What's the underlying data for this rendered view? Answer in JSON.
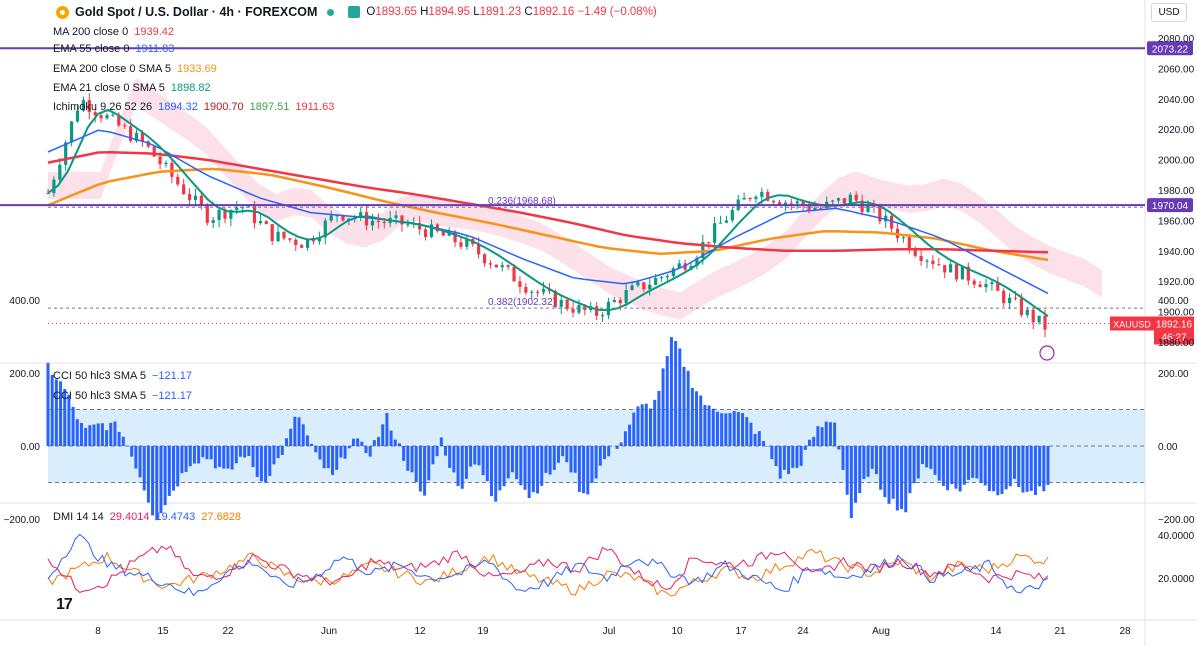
{
  "header": {
    "symbol_title": "Gold Spot / U.S. Dollar · 4h · FOREXCOM",
    "open_label": "O",
    "open": "1893.65",
    "high_label": "H",
    "high": "1894.95",
    "low_label": "L",
    "low": "1891.23",
    "close_label": "C",
    "close": "1892.16",
    "change": "−1.49 (−0.08%)",
    "currency": "USD"
  },
  "legend": {
    "ma200": {
      "label": "MA 200 close 0",
      "value": "1939.42",
      "color": "#f23645"
    },
    "ema55": {
      "label": "EMA 55 close 0",
      "value": "1911.83",
      "color": "#2962ff"
    },
    "ema200": {
      "label": "EMA 200 close 0 SMA 5",
      "value": "1933.69",
      "color": "#f7931a"
    },
    "ema21": {
      "label": "EMA 21 close 0 SMA 5",
      "value": "1898.82",
      "color": "#089981"
    },
    "ichimoku": {
      "label": "Ichimoku 9 26 52 26",
      "v1": "1894.32",
      "v2": "1900.70",
      "v3": "1897.51",
      "v4": "1911.63",
      "c1": "#2962ff",
      "c2": "#b71c1c",
      "c3": "#43a047",
      "c4": "#f23645"
    },
    "cci1": {
      "label": "CCI 50 hlc3 SMA 5",
      "value": "−121.17",
      "color": "#2962ff"
    },
    "cci2": {
      "label": "CCI 50 hlc3 SMA 5",
      "value": "−121.17",
      "color": "#2962ff"
    },
    "dmi": {
      "label": "DMI 14 14",
      "v1": "29.4014",
      "v2": "19.4743",
      "v3": "27.6828",
      "c1": "#e91e63",
      "c2": "#2962ff",
      "c3": "#f57c00"
    }
  },
  "chart_data": {
    "type": "candlestick",
    "symbol": "XAUUSD",
    "timeframe": "4h",
    "last_price": "1892.16",
    "countdown": "46:27",
    "price_axis": {
      "range": [
        1880,
        2085
      ],
      "ticks": [
        "1880.00",
        "1900.00",
        "1920.00",
        "1940.00",
        "1960.00",
        "1980.00",
        "2000.00",
        "2020.00",
        "2040.00",
        "2060.00",
        "2080.00"
      ]
    },
    "time_axis": {
      "labels": [
        "8",
        "15",
        "22",
        "Jun",
        "12",
        "19",
        "Jul",
        "10",
        "17",
        "24",
        "Aug",
        "14",
        "21",
        "28"
      ]
    },
    "horizontal_lines": [
      {
        "price": 2073.22,
        "label": "2073.22",
        "color": "#673ab7"
      },
      {
        "price": 1970.04,
        "label": "1970.04",
        "color": "#673ab7"
      }
    ],
    "fib_levels": [
      {
        "label": "0.236(1968.68)",
        "price": 1968.68
      },
      {
        "label": "0.382(1902.32)",
        "price": 1902.32
      }
    ],
    "price_path": [
      1978,
      2040,
      2025,
      2010,
      1985,
      1962,
      1970,
      1950,
      1945,
      1965,
      1960,
      1958,
      1952,
      1944,
      1930,
      1915,
      1905,
      1898,
      1912,
      1922,
      1935,
      1960,
      1980,
      1972,
      1968,
      1975,
      1960,
      1940,
      1928,
      1920,
      1905,
      1890
    ],
    "ma200_path": [
      1998,
      2005,
      2004,
      2000,
      1994,
      1988,
      1982,
      1977,
      1971,
      1965,
      1958,
      1950,
      1945,
      1942,
      1940,
      1940,
      1941,
      1941,
      1940,
      1939
    ],
    "ema200_path": [
      1970,
      1985,
      1992,
      1994,
      1990,
      1982,
      1973,
      1965,
      1958,
      1950,
      1942,
      1938,
      1940,
      1948,
      1953,
      1952,
      1948,
      1940,
      1934
    ],
    "ema55_path": [
      2005,
      2020,
      2010,
      1990,
      1975,
      1965,
      1962,
      1958,
      1950,
      1935,
      1922,
      1918,
      1928,
      1948,
      1965,
      1968,
      1960,
      1948,
      1930,
      1912
    ],
    "cci": {
      "range": [
        -200,
        400
      ],
      "ticks": [
        "400.00",
        "200.00",
        "0.00",
        "−200.00"
      ],
      "band": [
        100,
        -100
      ],
      "values": [
        220,
        150,
        40,
        60,
        50,
        -60,
        -200,
        -120,
        -40,
        -30,
        -80,
        -20,
        -100,
        -30,
        90,
        -30,
        -90,
        20,
        -20,
        80,
        -40,
        -150,
        20,
        -120,
        -30,
        -160,
        -60,
        -140,
        -80,
        -30,
        -140,
        -50,
        10,
        100,
        120,
        300,
        180,
        100,
        100,
        80,
        20,
        -80,
        -60,
        40,
        80,
        -200,
        -60,
        -140,
        -180,
        -40,
        -100,
        -120,
        -80,
        -130,
        -100,
        -130,
        -121
      ]
    },
    "dmi": {
      "ticks": [
        "40.0000",
        "20.0000"
      ],
      "range": [
        0,
        45
      ],
      "plus_di": [
        30,
        15,
        18,
        28,
        35,
        20,
        22,
        30,
        24,
        20,
        18,
        28,
        24,
        26,
        32,
        20,
        22,
        28,
        24,
        34,
        22,
        15,
        30,
        26,
        28,
        34,
        20,
        28,
        24,
        28,
        22,
        26,
        20,
        22,
        19
      ],
      "minus_di": [
        20,
        40,
        26,
        22,
        18,
        12,
        22,
        28,
        16,
        20,
        30,
        22,
        26,
        20,
        22,
        28,
        14,
        18,
        26,
        20,
        30,
        24,
        18,
        26,
        20,
        14,
        26,
        20,
        24,
        30,
        20,
        22,
        26,
        12,
        19
      ],
      "adx": [
        18,
        24,
        30,
        22,
        16,
        20,
        24,
        30,
        22,
        18,
        20,
        26,
        22,
        18,
        24,
        30,
        22,
        18,
        14,
        22,
        20,
        12,
        18,
        24,
        20,
        26,
        32,
        26,
        22,
        28,
        20,
        26,
        24,
        30,
        28
      ]
    }
  }
}
